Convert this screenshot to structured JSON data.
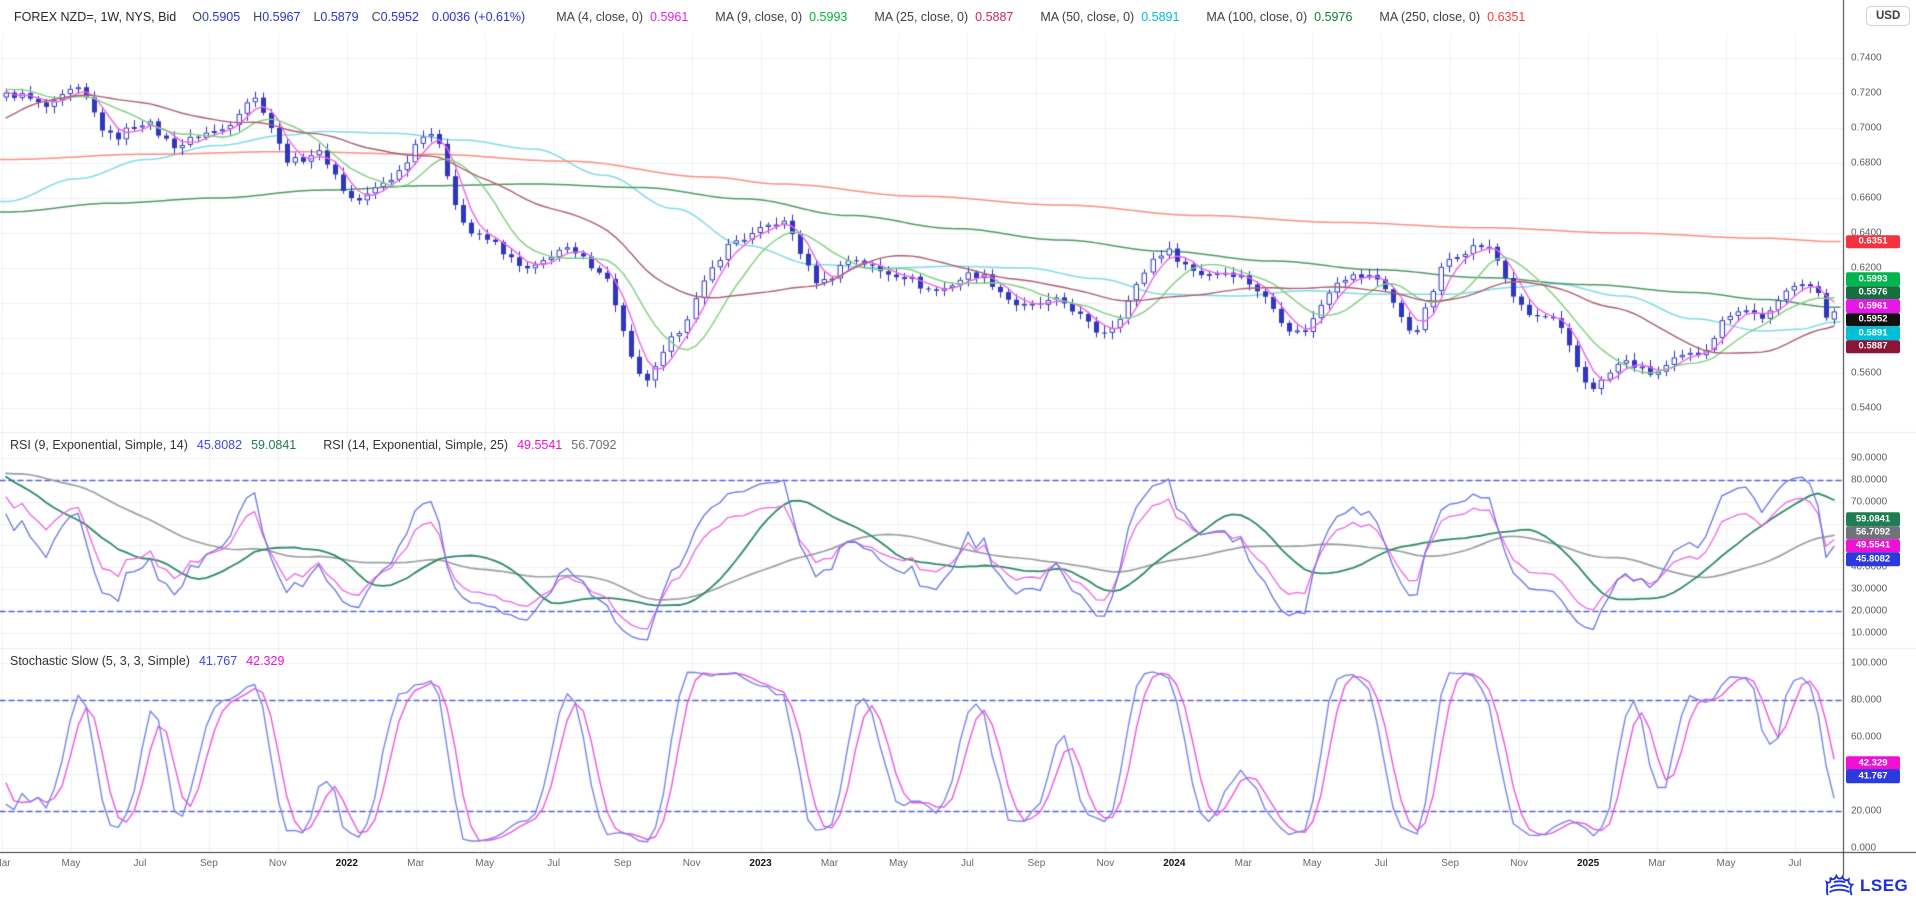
{
  "header": {
    "title": "FOREX NZD=, 1W, NYS, Bid",
    "quote": [
      {
        "label": "O",
        "value": "0.5905"
      },
      {
        "label": "H",
        "value": "0.5967"
      },
      {
        "label": "L",
        "value": "0.5879"
      },
      {
        "label": "C",
        "value": "0.5952"
      }
    ],
    "change_abs": "0.0036",
    "change_pct": "(+0.61%)",
    "ma_legend": [
      {
        "name": "ma-4",
        "label": "MA (4, close, 0)",
        "value": "0.5961",
        "color": "#e521e5"
      },
      {
        "name": "ma-9",
        "label": "MA (9, close, 0)",
        "value": "0.5993",
        "color": "#00b33c"
      },
      {
        "name": "ma-25",
        "label": "MA (25, close, 0)",
        "value": "0.5887",
        "color": "#c92a52"
      },
      {
        "name": "ma-50",
        "label": "MA (50, close, 0)",
        "value": "0.5891",
        "color": "#00bcd4"
      },
      {
        "name": "ma-100",
        "label": "MA (100, close, 0)",
        "value": "0.5976",
        "color": "#0e7d36"
      },
      {
        "name": "ma-250",
        "label": "MA (250, close, 0)",
        "value": "0.6351",
        "color": "#f23c3c"
      }
    ],
    "currency_button": "USD"
  },
  "rsi_header": {
    "label1": "RSI (9, Exponential, Simple, 14)",
    "v1": "45.8082",
    "v1_color": "#3d49e0",
    "v2": "59.0841",
    "v2_color": "#1e7d52",
    "label2": "RSI (14, Exponential, Simple, 25)",
    "v3": "49.5541",
    "v3_color": "#ee11d4",
    "v4": "56.7092",
    "v4_color": "#6d7177"
  },
  "stoch_header": {
    "label": "Stochastic Slow (5, 3, 3, Simple)",
    "k": "41.767",
    "k_color": "#3d49e0",
    "d": "42.329",
    "d_color": "#ee11d4"
  },
  "price_axis": {
    "ticks": [
      {
        "text": "0.7400",
        "value": 0.74
      },
      {
        "text": "0.7200",
        "value": 0.72
      },
      {
        "text": "0.7000",
        "value": 0.7
      },
      {
        "text": "0.6800",
        "value": 0.68
      },
      {
        "text": "0.6600",
        "value": 0.66
      },
      {
        "text": "0.6400",
        "value": 0.64
      },
      {
        "text": "0.6200",
        "value": 0.62
      },
      {
        "text": "0.6000",
        "value": 0.6
      },
      {
        "text": "0.5800",
        "value": 0.58
      },
      {
        "text": "0.5600",
        "value": 0.56
      },
      {
        "text": "0.5400",
        "value": 0.54
      }
    ],
    "badges": [
      {
        "name": "ma250-price-badge",
        "text": "0.6351",
        "value": 0.6351,
        "bg": "#f4313f",
        "fg": "#ffffff"
      },
      {
        "name": "ma9-price-badge",
        "text": "0.5993",
        "value": 0.5993,
        "bg": "#00b44e",
        "fg": "#ffffff"
      },
      {
        "name": "ma100-price-badge",
        "text": "0.5976",
        "value": 0.5976,
        "bg": "#156f3e",
        "fg": "#ffffff"
      },
      {
        "name": "ma4-price-badge",
        "text": "0.5961",
        "value": 0.5961,
        "bg": "#e817e8",
        "fg": "#ffffff"
      },
      {
        "name": "last-price-badge",
        "text": "0.5952",
        "value": 0.5952,
        "bg": "#101010",
        "fg": "#ffffff"
      },
      {
        "name": "ma50-price-badge",
        "text": "0.5891",
        "value": 0.5891,
        "bg": "#00c0d8",
        "fg": "#ffffff"
      },
      {
        "name": "ma25-price-badge",
        "text": "0.5887",
        "value": 0.5887,
        "bg": "#8c1437",
        "fg": "#ffffff"
      }
    ]
  },
  "rsi_axis": {
    "ticks": [
      {
        "text": "90.0000",
        "value": 90
      },
      {
        "text": "80.0000",
        "value": 80
      },
      {
        "text": "70.0000",
        "value": 70
      },
      {
        "text": "60.0000",
        "value": 60
      },
      {
        "text": "50.0000",
        "value": 50
      },
      {
        "text": "40.0000",
        "value": 40
      },
      {
        "text": "30.0000",
        "value": 30
      },
      {
        "text": "20.0000",
        "value": 20
      },
      {
        "text": "10.0000",
        "value": 10
      }
    ],
    "badges": [
      {
        "name": "rsi9-ma-badge",
        "text": "59.0841",
        "value": 59.0841,
        "bg": "#1e7d52",
        "fg": "#ffffff"
      },
      {
        "name": "rsi14-ma-badge",
        "text": "56.7092",
        "value": 56.7092,
        "bg": "#6f747b",
        "fg": "#ffffff"
      },
      {
        "name": "rsi14-badge",
        "text": "49.5541",
        "value": 49.5541,
        "bg": "#ee11d4",
        "fg": "#ffffff"
      },
      {
        "name": "rsi9-badge",
        "text": "45.8082",
        "value": 45.8082,
        "bg": "#2c39de",
        "fg": "#ffffff"
      }
    ]
  },
  "stoch_axis": {
    "ticks": [
      {
        "text": "100.000",
        "value": 100
      },
      {
        "text": "80.000",
        "value": 80
      },
      {
        "text": "60.000",
        "value": 60
      },
      {
        "text": "40.000",
        "value": 40
      },
      {
        "text": "20.000",
        "value": 20
      },
      {
        "text": "0.000",
        "value": 0
      }
    ],
    "badges": [
      {
        "name": "stoch-d-badge",
        "text": "42.329",
        "value": 42.329,
        "bg": "#ee11d4",
        "fg": "#ffffff"
      },
      {
        "name": "stoch-k-badge",
        "text": "41.767",
        "value": 41.767,
        "bg": "#2c39de",
        "fg": "#ffffff"
      }
    ]
  },
  "time_axis": {
    "labels": [
      "Mar",
      "May",
      "Jul",
      "Sep",
      "Nov",
      "2022",
      "Mar",
      "May",
      "Jul",
      "Sep",
      "Nov",
      "2023",
      "Mar",
      "May",
      "Jul",
      "Sep",
      "Nov",
      "2024",
      "Mar",
      "May",
      "Jul",
      "Sep",
      "Nov",
      "2025",
      "Mar",
      "May",
      "Jul"
    ]
  },
  "footer": {
    "logo_text": "LSEG"
  },
  "chart_data": {
    "type": "candlestick",
    "instrument": "FOREX NZD=",
    "interval": "1W",
    "x_start": "2021-03",
    "x_end": "2025-07",
    "weeks": 229,
    "price_ylim": [
      0.527,
      0.754
    ],
    "grid": true,
    "last_candle": {
      "o": 0.5905,
      "h": 0.5967,
      "l": 0.5879,
      "c": 0.5952
    },
    "monthly_closes": [
      0.716,
      0.715,
      0.722,
      0.697,
      0.698,
      0.691,
      0.702,
      0.716,
      0.682,
      0.68,
      0.662,
      0.675,
      0.695,
      0.646,
      0.631,
      0.624,
      0.629,
      0.612,
      0.56,
      0.581,
      0.62,
      0.634,
      0.644,
      0.618,
      0.625,
      0.618,
      0.606,
      0.613,
      0.617,
      0.595,
      0.6,
      0.582,
      0.607,
      0.632,
      0.612,
      0.617,
      0.598,
      0.589,
      0.614,
      0.609,
      0.588,
      0.625,
      0.634,
      0.597,
      0.588,
      0.559,
      0.565,
      0.56,
      0.568,
      0.595,
      0.597,
      0.609,
      0.5952
    ],
    "prehistory_closes": [
      0.596,
      0.605,
      0.62,
      0.643,
      0.663,
      0.674,
      0.663,
      0.662,
      0.702,
      0.718,
      0.719,
      0.723
    ],
    "computed_mas": [
      {
        "period": 4,
        "color": "#ef63ef",
        "last": 0.5961
      },
      {
        "period": 9,
        "color": "#7ed07e",
        "last": 0.5993
      },
      {
        "period": 25,
        "color": "#ad5f6f",
        "last": 0.5887
      }
    ],
    "anchor_mas": [
      {
        "period": 50,
        "color": "#7fdbe8",
        "last": 0.5891,
        "points": [
          [
            0,
            0.658
          ],
          [
            2,
            0.671
          ],
          [
            4,
            0.682
          ],
          [
            6,
            0.69
          ],
          [
            8,
            0.696
          ],
          [
            9,
            0.698
          ],
          [
            11,
            0.697
          ],
          [
            13,
            0.693
          ],
          [
            15,
            0.688
          ],
          [
            17,
            0.673
          ],
          [
            19,
            0.654
          ],
          [
            21,
            0.633
          ],
          [
            23,
            0.622
          ],
          [
            25,
            0.62
          ],
          [
            27,
            0.621
          ],
          [
            29,
            0.62
          ],
          [
            31,
            0.614
          ],
          [
            33,
            0.605
          ],
          [
            35,
            0.604
          ],
          [
            37,
            0.607
          ],
          [
            39,
            0.605
          ],
          [
            41,
            0.605
          ],
          [
            43,
            0.609
          ],
          [
            44,
            0.611
          ],
          [
            46,
            0.604
          ],
          [
            48,
            0.591
          ],
          [
            50,
            0.584
          ],
          [
            51,
            0.585
          ],
          [
            52,
            0.5891
          ]
        ]
      },
      {
        "period": 100,
        "color": "#4d9a66",
        "last": 0.5976,
        "points": [
          [
            0,
            0.652
          ],
          [
            3,
            0.657
          ],
          [
            6,
            0.66
          ],
          [
            9,
            0.6645
          ],
          [
            12,
            0.667
          ],
          [
            15,
            0.668
          ],
          [
            18,
            0.666
          ],
          [
            21,
            0.6595
          ],
          [
            24,
            0.65
          ],
          [
            27,
            0.6425
          ],
          [
            30,
            0.636
          ],
          [
            33,
            0.6295
          ],
          [
            36,
            0.624
          ],
          [
            39,
            0.619
          ],
          [
            42,
            0.6145
          ],
          [
            45,
            0.6105
          ],
          [
            48,
            0.606
          ],
          [
            50,
            0.602
          ],
          [
            52,
            0.5976
          ]
        ]
      },
      {
        "period": 250,
        "color": "#fb8f80",
        "last": 0.6351,
        "points": [
          [
            0,
            0.682
          ],
          [
            4,
            0.685
          ],
          [
            8,
            0.6865
          ],
          [
            12,
            0.685
          ],
          [
            16,
            0.681
          ],
          [
            20,
            0.672
          ],
          [
            22,
            0.668
          ],
          [
            26,
            0.661
          ],
          [
            30,
            0.656
          ],
          [
            34,
            0.65
          ],
          [
            38,
            0.646
          ],
          [
            42,
            0.643
          ],
          [
            46,
            0.64
          ],
          [
            50,
            0.637
          ],
          [
            52,
            0.6351
          ]
        ]
      }
    ],
    "rsi": {
      "period_fast": 9,
      "period_slow": 14,
      "smooth_fast": 14,
      "smooth_slow": 25,
      "levels": [
        80,
        20
      ],
      "ylim": [
        3,
        101
      ],
      "colors": {
        "rsi_fast": "#6a74e6",
        "rsi_slow": "#ee66e4",
        "ma_fast": "#2e8b62",
        "ma_slow": "#9aa0a6"
      },
      "last": {
        "rsi9": 45.8082,
        "ma14": 59.0841,
        "rsi14": 49.5541,
        "ma25": 56.7092
      }
    },
    "stoch": {
      "k": 5,
      "slowing": 3,
      "d": 3,
      "levels": [
        80,
        20
      ],
      "ylim": [
        -4,
        108
      ],
      "colors": {
        "k_line": "#7b84ea",
        "d_line": "#ee55dd"
      },
      "last": {
        "k": 41.767,
        "d": 42.329
      }
    },
    "colors": {
      "candle": "#2f36c0",
      "candle_up_fill": "#ffffff",
      "grid": "#f0f0f4",
      "dashed_level": "#575ee8",
      "axis_line": "#33363c",
      "separator": "#ececf0",
      "brand_blue": "#1b2ee0"
    }
  }
}
